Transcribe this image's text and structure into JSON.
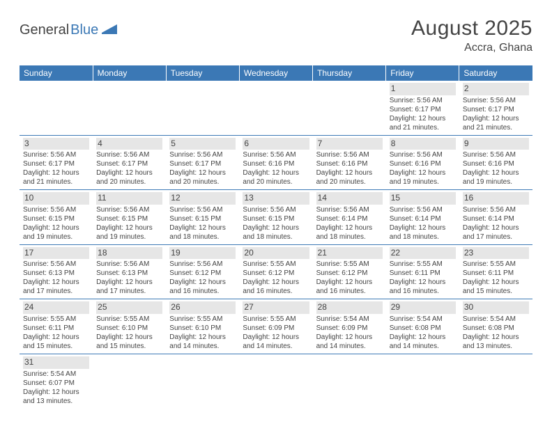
{
  "logo": {
    "part1": "General",
    "part2": "Blue"
  },
  "title": "August 2025",
  "location": "Accra, Ghana",
  "colors": {
    "header_bg": "#3b78b5",
    "header_text": "#ffffff",
    "daynum_bg": "#e6e6e6",
    "text": "#434343",
    "row_divider": "#3b78b5",
    "logo_blue": "#3b78b5"
  },
  "weekdays": [
    "Sunday",
    "Monday",
    "Tuesday",
    "Wednesday",
    "Thursday",
    "Friday",
    "Saturday"
  ],
  "weeks": [
    [
      null,
      null,
      null,
      null,
      null,
      {
        "n": "1",
        "sr": "5:56 AM",
        "ss": "6:17 PM",
        "dl": "12 hours and 21 minutes."
      },
      {
        "n": "2",
        "sr": "5:56 AM",
        "ss": "6:17 PM",
        "dl": "12 hours and 21 minutes."
      }
    ],
    [
      {
        "n": "3",
        "sr": "5:56 AM",
        "ss": "6:17 PM",
        "dl": "12 hours and 21 minutes."
      },
      {
        "n": "4",
        "sr": "5:56 AM",
        "ss": "6:17 PM",
        "dl": "12 hours and 20 minutes."
      },
      {
        "n": "5",
        "sr": "5:56 AM",
        "ss": "6:17 PM",
        "dl": "12 hours and 20 minutes."
      },
      {
        "n": "6",
        "sr": "5:56 AM",
        "ss": "6:16 PM",
        "dl": "12 hours and 20 minutes."
      },
      {
        "n": "7",
        "sr": "5:56 AM",
        "ss": "6:16 PM",
        "dl": "12 hours and 20 minutes."
      },
      {
        "n": "8",
        "sr": "5:56 AM",
        "ss": "6:16 PM",
        "dl": "12 hours and 19 minutes."
      },
      {
        "n": "9",
        "sr": "5:56 AM",
        "ss": "6:16 PM",
        "dl": "12 hours and 19 minutes."
      }
    ],
    [
      {
        "n": "10",
        "sr": "5:56 AM",
        "ss": "6:15 PM",
        "dl": "12 hours and 19 minutes."
      },
      {
        "n": "11",
        "sr": "5:56 AM",
        "ss": "6:15 PM",
        "dl": "12 hours and 19 minutes."
      },
      {
        "n": "12",
        "sr": "5:56 AM",
        "ss": "6:15 PM",
        "dl": "12 hours and 18 minutes."
      },
      {
        "n": "13",
        "sr": "5:56 AM",
        "ss": "6:15 PM",
        "dl": "12 hours and 18 minutes."
      },
      {
        "n": "14",
        "sr": "5:56 AM",
        "ss": "6:14 PM",
        "dl": "12 hours and 18 minutes."
      },
      {
        "n": "15",
        "sr": "5:56 AM",
        "ss": "6:14 PM",
        "dl": "12 hours and 18 minutes."
      },
      {
        "n": "16",
        "sr": "5:56 AM",
        "ss": "6:14 PM",
        "dl": "12 hours and 17 minutes."
      }
    ],
    [
      {
        "n": "17",
        "sr": "5:56 AM",
        "ss": "6:13 PM",
        "dl": "12 hours and 17 minutes."
      },
      {
        "n": "18",
        "sr": "5:56 AM",
        "ss": "6:13 PM",
        "dl": "12 hours and 17 minutes."
      },
      {
        "n": "19",
        "sr": "5:56 AM",
        "ss": "6:12 PM",
        "dl": "12 hours and 16 minutes."
      },
      {
        "n": "20",
        "sr": "5:55 AM",
        "ss": "6:12 PM",
        "dl": "12 hours and 16 minutes."
      },
      {
        "n": "21",
        "sr": "5:55 AM",
        "ss": "6:12 PM",
        "dl": "12 hours and 16 minutes."
      },
      {
        "n": "22",
        "sr": "5:55 AM",
        "ss": "6:11 PM",
        "dl": "12 hours and 16 minutes."
      },
      {
        "n": "23",
        "sr": "5:55 AM",
        "ss": "6:11 PM",
        "dl": "12 hours and 15 minutes."
      }
    ],
    [
      {
        "n": "24",
        "sr": "5:55 AM",
        "ss": "6:11 PM",
        "dl": "12 hours and 15 minutes."
      },
      {
        "n": "25",
        "sr": "5:55 AM",
        "ss": "6:10 PM",
        "dl": "12 hours and 15 minutes."
      },
      {
        "n": "26",
        "sr": "5:55 AM",
        "ss": "6:10 PM",
        "dl": "12 hours and 14 minutes."
      },
      {
        "n": "27",
        "sr": "5:55 AM",
        "ss": "6:09 PM",
        "dl": "12 hours and 14 minutes."
      },
      {
        "n": "28",
        "sr": "5:54 AM",
        "ss": "6:09 PM",
        "dl": "12 hours and 14 minutes."
      },
      {
        "n": "29",
        "sr": "5:54 AM",
        "ss": "6:08 PM",
        "dl": "12 hours and 14 minutes."
      },
      {
        "n": "30",
        "sr": "5:54 AM",
        "ss": "6:08 PM",
        "dl": "12 hours and 13 minutes."
      }
    ],
    [
      {
        "n": "31",
        "sr": "5:54 AM",
        "ss": "6:07 PM",
        "dl": "12 hours and 13 minutes."
      },
      null,
      null,
      null,
      null,
      null,
      null
    ]
  ],
  "labels": {
    "sunrise_prefix": "Sunrise: ",
    "sunset_prefix": "Sunset: ",
    "daylight_prefix": "Daylight: "
  }
}
